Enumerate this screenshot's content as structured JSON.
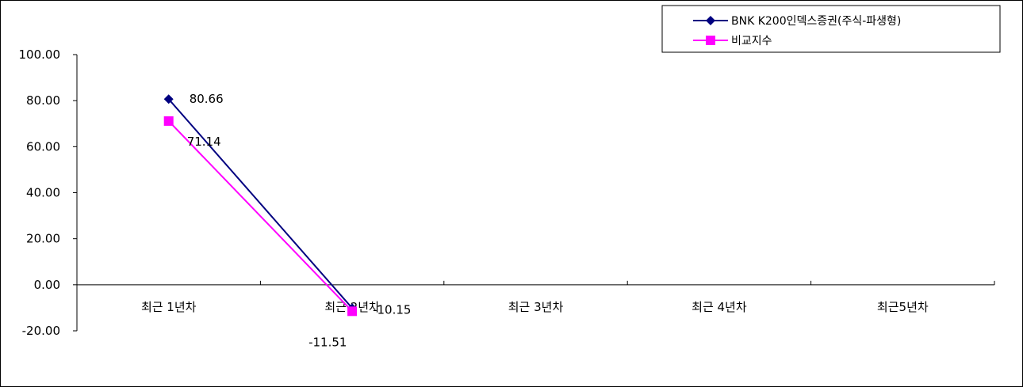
{
  "chart_data": {
    "type": "line",
    "categories": [
      "최근 1년차",
      "최근 2년차",
      "최근 3년차",
      "최근 4년차",
      "최근5년차"
    ],
    "ylim": [
      -20,
      100
    ],
    "y_ticks": [
      "100.00",
      "80.00",
      "60.00",
      "40.00",
      "20.00",
      "0.00",
      "-20.00"
    ],
    "y_tick_values": [
      100,
      80,
      60,
      40,
      20,
      0,
      -20
    ],
    "grid": false,
    "legend_position": "top-right",
    "series": [
      {
        "name": "BNK K200인덱스증권(주식-파생형)",
        "color": "#000080",
        "marker": "diamond",
        "values": [
          80.66,
          -10.15,
          null,
          null,
          null
        ],
        "labels": [
          "80.66",
          "-10.15",
          "",
          "",
          ""
        ]
      },
      {
        "name": "비교지수",
        "color": "#ff00ff",
        "marker": "square",
        "values": [
          71.14,
          -11.51,
          null,
          null,
          null
        ],
        "labels": [
          "71.14",
          "-11.51",
          "",
          "",
          ""
        ]
      }
    ]
  }
}
